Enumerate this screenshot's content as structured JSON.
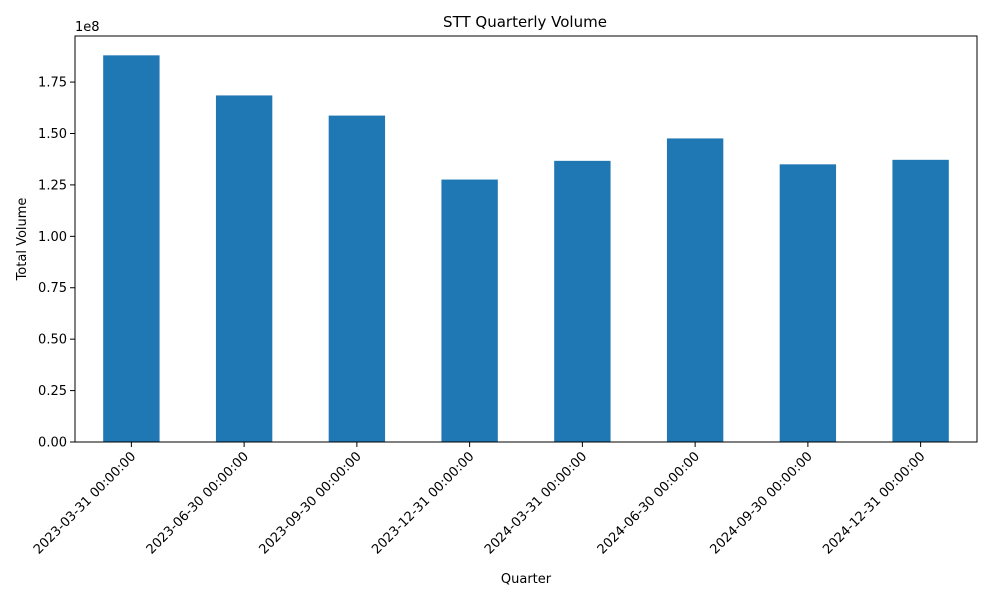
{
  "chart_data": {
    "type": "bar",
    "title": "STT Quarterly Volume",
    "xlabel": "Quarter",
    "ylabel": "Total Volume",
    "y_offset_text": "1e8",
    "categories": [
      "2023-03-31 00:00:00",
      "2023-06-30 00:00:00",
      "2023-09-30 00:00:00",
      "2023-12-31 00:00:00",
      "2024-03-31 00:00:00",
      "2024-06-30 00:00:00",
      "2024-09-30 00:00:00",
      "2024-12-31 00:00:00"
    ],
    "values": [
      188000000,
      168500000,
      158700000,
      127600000,
      136700000,
      147600000,
      135000000,
      137200000
    ],
    "ylim": [
      0,
      197400000
    ],
    "yticks": [
      0,
      25000000,
      50000000,
      75000000,
      100000000,
      125000000,
      150000000,
      175000000
    ],
    "ytick_labels": [
      "0.00",
      "0.25",
      "0.50",
      "0.75",
      "1.00",
      "1.25",
      "1.50",
      "1.75"
    ],
    "grid": false,
    "legend": "none",
    "bar_color": "#1f77b4"
  }
}
